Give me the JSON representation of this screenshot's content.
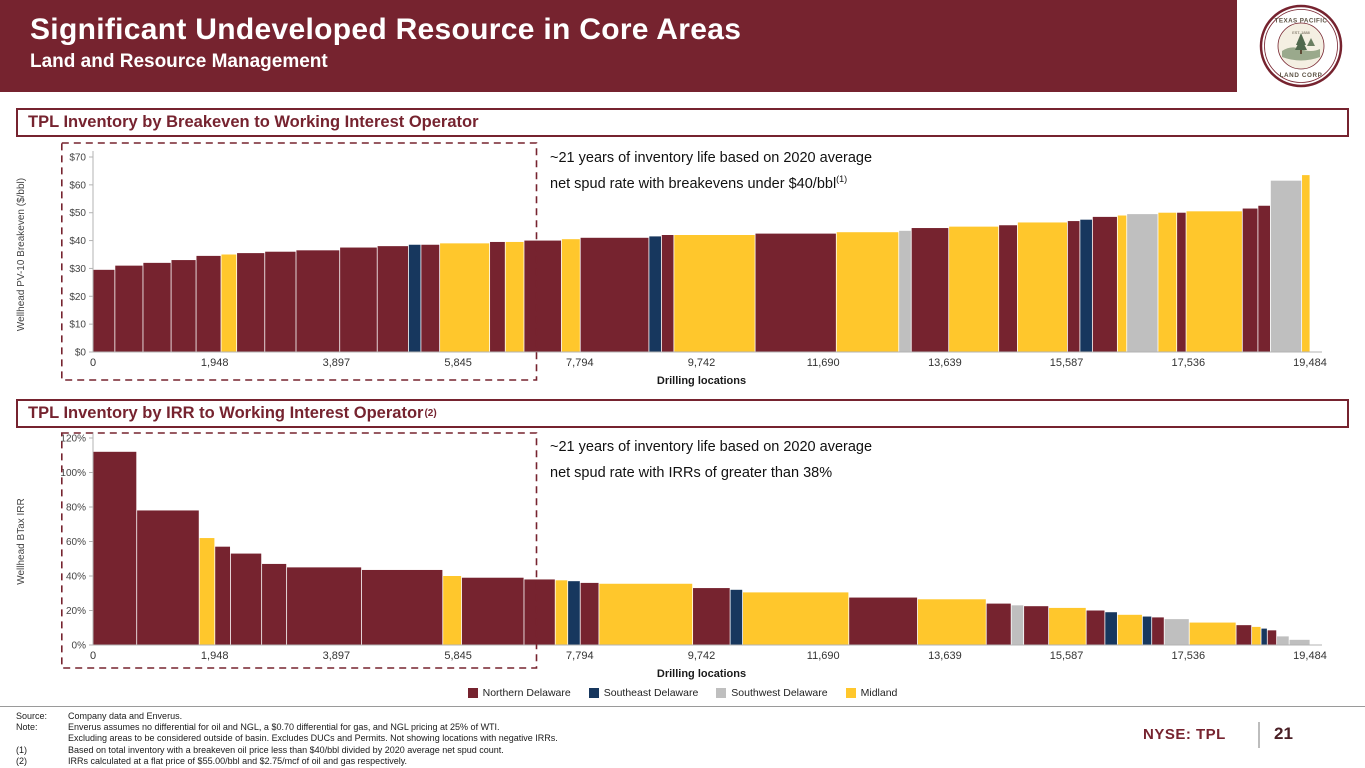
{
  "header": {
    "title": "Significant Undeveloped Resource in Core Areas",
    "subtitle": "Land and Resource Management"
  },
  "logo": {
    "top": "TEXAS PACIFIC",
    "bottom": "LAND CORP",
    "est": "EST. 1888"
  },
  "colors": {
    "maroon": "#76232F",
    "N": "#76232F",
    "SE": "#17375E",
    "SW": "#BFBFBF",
    "M": "#FFC72C"
  },
  "sections": [
    {
      "title": "TPL Inventory by Breakeven to Working Interest Operator",
      "title_sup": ""
    },
    {
      "title": "TPL Inventory by IRR to Working Interest Operator",
      "title_sup": "(2)"
    }
  ],
  "legend": [
    {
      "key": "N",
      "label": "Northern Delaware",
      "color": "#76232F"
    },
    {
      "key": "SE",
      "label": "Southeast Delaware",
      "color": "#17375E"
    },
    {
      "key": "SW",
      "label": "Southwest Delaware",
      "color": "#BFBFBF"
    },
    {
      "key": "M",
      "label": "Midland",
      "color": "#FFC72C"
    }
  ],
  "chart_data": [
    {
      "type": "bar",
      "title": "TPL Inventory by Breakeven to Working Interest Operator",
      "xlabel": "Drilling locations",
      "ylabel": "Wellhead PV-10 Breakeven ($/bbl)",
      "ylim": [
        0,
        70
      ],
      "ytick_labels": [
        "$0",
        "$10",
        "$20",
        "$30",
        "$40",
        "$50",
        "$60",
        "$70"
      ],
      "xmax": 19484,
      "xtick_labels": [
        "0",
        "1,948",
        "3,897",
        "5,845",
        "7,794",
        "9,742",
        "11,690",
        "13,639",
        "15,587",
        "17,536",
        "19,484"
      ],
      "annotation": {
        "line1": "~21 years of inventory life based on 2020 average",
        "line2": "net spud rate with breakevens under $40/bbl",
        "sup": "(1)"
      },
      "highlight": [
        -500,
        7100
      ],
      "segments": [
        [
          0,
          350,
          29.5,
          "N"
        ],
        [
          350,
          800,
          31,
          "N"
        ],
        [
          800,
          1250,
          32,
          "N"
        ],
        [
          1250,
          1650,
          33,
          "N"
        ],
        [
          1650,
          2050,
          34.5,
          "N"
        ],
        [
          2050,
          2300,
          35,
          "M"
        ],
        [
          2300,
          2750,
          35.5,
          "N"
        ],
        [
          2750,
          3250,
          36,
          "N"
        ],
        [
          3250,
          3950,
          36.5,
          "N"
        ],
        [
          3950,
          4550,
          37.5,
          "N"
        ],
        [
          4550,
          5050,
          38,
          "N"
        ],
        [
          5050,
          5250,
          38.5,
          "SE"
        ],
        [
          5250,
          5550,
          38.5,
          "N"
        ],
        [
          5550,
          6350,
          39,
          "M"
        ],
        [
          6350,
          6600,
          39.5,
          "N"
        ],
        [
          6600,
          6900,
          39.5,
          "M"
        ],
        [
          6900,
          7500,
          40,
          "N"
        ],
        [
          7500,
          7800,
          40.5,
          "M"
        ],
        [
          7800,
          8900,
          41,
          "N"
        ],
        [
          8900,
          9100,
          41.5,
          "SE"
        ],
        [
          9100,
          9300,
          42,
          "N"
        ],
        [
          9300,
          10600,
          42,
          "M"
        ],
        [
          10600,
          11900,
          42.5,
          "N"
        ],
        [
          11900,
          12900,
          43,
          "M"
        ],
        [
          12900,
          13100,
          43.5,
          "SW"
        ],
        [
          13100,
          13700,
          44.5,
          "N"
        ],
        [
          13700,
          14500,
          45,
          "M"
        ],
        [
          14500,
          14800,
          45.5,
          "N"
        ],
        [
          14800,
          15600,
          46.5,
          "M"
        ],
        [
          15600,
          15800,
          47,
          "N"
        ],
        [
          15800,
          16000,
          47.5,
          "SE"
        ],
        [
          16000,
          16400,
          48.5,
          "N"
        ],
        [
          16400,
          16550,
          49,
          "M"
        ],
        [
          16550,
          17050,
          49.5,
          "SW"
        ],
        [
          17050,
          17350,
          50,
          "M"
        ],
        [
          17350,
          17500,
          50,
          "N"
        ],
        [
          17500,
          18400,
          50.5,
          "M"
        ],
        [
          18400,
          18650,
          51.5,
          "N"
        ],
        [
          18650,
          18850,
          52.5,
          "N"
        ],
        [
          18850,
          19350,
          61.5,
          "SW"
        ],
        [
          19350,
          19484,
          63.5,
          "M"
        ]
      ]
    },
    {
      "type": "bar",
      "title": "TPL Inventory by IRR to Working Interest Operator",
      "xlabel": "Drilling locations",
      "ylabel": "Wellhead BTax IRR",
      "ylim": [
        0,
        120
      ],
      "ytick_labels": [
        "0%",
        "20%",
        "40%",
        "60%",
        "80%",
        "100%",
        "120%"
      ],
      "xmax": 19484,
      "xtick_labels": [
        "0",
        "1,948",
        "3,897",
        "5,845",
        "7,794",
        "9,742",
        "11,690",
        "13,639",
        "15,587",
        "17,536",
        "19,484"
      ],
      "annotation": {
        "line1": "~21 years of inventory life based on 2020 average",
        "line2": "net spud rate with IRRs of greater than 38%",
        "sup": ""
      },
      "highlight": [
        -500,
        7100
      ],
      "segments": [
        [
          0,
          700,
          112,
          "N"
        ],
        [
          700,
          1700,
          78,
          "N"
        ],
        [
          1700,
          1950,
          62,
          "M"
        ],
        [
          1950,
          2200,
          57,
          "N"
        ],
        [
          2200,
          2700,
          53,
          "N"
        ],
        [
          2700,
          3100,
          47,
          "N"
        ],
        [
          3100,
          4300,
          45,
          "N"
        ],
        [
          4300,
          5600,
          43.5,
          "N"
        ],
        [
          5600,
          5900,
          40,
          "M"
        ],
        [
          5900,
          6900,
          39,
          "N"
        ],
        [
          6900,
          7400,
          38,
          "N"
        ],
        [
          7400,
          7600,
          37.5,
          "M"
        ],
        [
          7600,
          7800,
          37,
          "SE"
        ],
        [
          7800,
          8100,
          36,
          "N"
        ],
        [
          8100,
          9600,
          35.5,
          "M"
        ],
        [
          9600,
          10200,
          33,
          "N"
        ],
        [
          10200,
          10400,
          32,
          "SE"
        ],
        [
          10400,
          12100,
          30.5,
          "M"
        ],
        [
          12100,
          13200,
          27.5,
          "N"
        ],
        [
          13200,
          14300,
          26.5,
          "M"
        ],
        [
          14300,
          14700,
          24,
          "N"
        ],
        [
          14700,
          14900,
          23,
          "SW"
        ],
        [
          14900,
          15300,
          22.5,
          "N"
        ],
        [
          15300,
          15900,
          21.5,
          "M"
        ],
        [
          15900,
          16200,
          20,
          "N"
        ],
        [
          16200,
          16400,
          19,
          "SE"
        ],
        [
          16400,
          16800,
          17.5,
          "M"
        ],
        [
          16800,
          16950,
          16.5,
          "SE"
        ],
        [
          16950,
          17150,
          16,
          "N"
        ],
        [
          17150,
          17550,
          15,
          "SW"
        ],
        [
          17550,
          18300,
          13,
          "M"
        ],
        [
          18300,
          18550,
          11.5,
          "N"
        ],
        [
          18550,
          18700,
          10.5,
          "M"
        ],
        [
          18700,
          18800,
          9.5,
          "SE"
        ],
        [
          18800,
          18950,
          8.5,
          "N"
        ],
        [
          18950,
          19150,
          5,
          "SW"
        ],
        [
          19150,
          19484,
          3,
          "SW"
        ]
      ]
    }
  ],
  "footer": {
    "lines": [
      {
        "label": "Source:",
        "text": "Company data and Enverus."
      },
      {
        "label": "Note:",
        "text": "Enverus assumes no differential for oil and NGL, a $0.70 differential for gas, and NGL pricing at 25% of WTI."
      },
      {
        "label": "",
        "text": "Excluding areas to be considered outside of basin. Excludes DUCs and Permits. Not showing locations with negative IRRs."
      },
      {
        "label": "(1)",
        "text": "Based on total inventory with a breakeven oil price less than $40/bbl divided by 2020 average net spud count."
      },
      {
        "label": "(2)",
        "text": "IRRs calculated at a flat price of $55.00/bbl and $2.75/mcf of oil and gas respectively."
      }
    ]
  },
  "footer_right": {
    "ticker": "NYSE: TPL",
    "page": "21"
  }
}
